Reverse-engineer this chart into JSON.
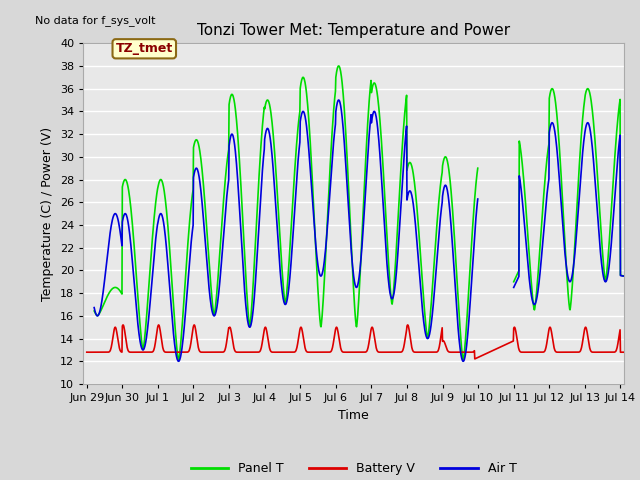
{
  "title": "Tonzi Tower Met: Temperature and Power",
  "no_data_text": "No data for f_sys_volt",
  "ylabel": "Temperature (C) / Power (V)",
  "xlabel": "Time",
  "ylim": [
    10,
    40
  ],
  "yticks": [
    10,
    12,
    14,
    16,
    18,
    20,
    22,
    24,
    26,
    28,
    30,
    32,
    34,
    36,
    38,
    40
  ],
  "annotation_label": "TZ_tmet",
  "bg_color": "#d8d8d8",
  "plot_bg_color": "#e8e8e8",
  "line_panel_color": "#00dd00",
  "line_battery_color": "#dd0000",
  "line_air_color": "#0000dd",
  "legend_labels": [
    "Panel T",
    "Battery V",
    "Air T"
  ],
  "x_tick_labels": [
    "Jun 29",
    "Jun 30",
    "Jul 1",
    "Jul 2",
    "Jul 3",
    "Jul 4",
    "Jul 5",
    "Jul 6",
    "Jul 7",
    "Jul 8",
    "Jul 9",
    "Jul 10",
    "Jul 11",
    "Jul 12",
    "Jul 13",
    "Jul 14"
  ],
  "title_fontsize": 11,
  "label_fontsize": 9,
  "tick_fontsize": 8,
  "legend_fontsize": 9,
  "grid_color": "#ffffff",
  "grid_linewidth": 1.0
}
